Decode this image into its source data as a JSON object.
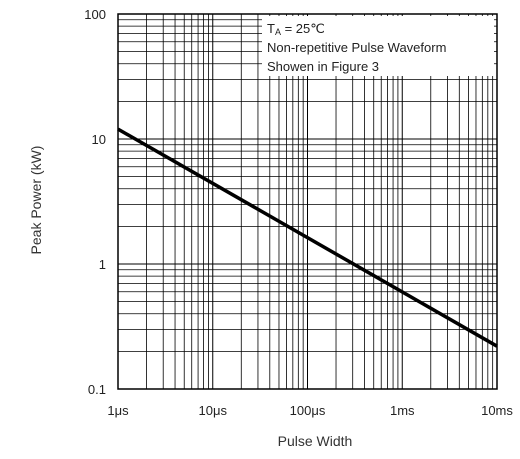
{
  "chart_data": {
    "type": "line",
    "x_scale": "log",
    "y_scale": "log",
    "xlim_seconds": [
      1e-06,
      0.01
    ],
    "ylim": [
      0.1,
      100
    ],
    "xlabel": "Pulse Width",
    "ylabel": "Peak Power (kW)",
    "x_tick_values": [
      1e-06,
      1e-05,
      0.0001,
      0.001,
      0.01
    ],
    "x_tick_labels": [
      "1μs",
      "10μs",
      "100μs",
      "1ms",
      "10ms"
    ],
    "y_tick_values": [
      0.1,
      1,
      10,
      100
    ],
    "y_tick_labels": [
      "0.1",
      "1",
      "10",
      "100"
    ],
    "grid": true,
    "annotation": {
      "line1_main": "T",
      "line1_sub": "A",
      "line1_rest": " = 25℃",
      "line2": "Non-repetitive Pulse Waveform",
      "line3": "Showen in Figure 3"
    },
    "series": [
      {
        "color": "#000000",
        "x": [
          1e-06,
          0.01
        ],
        "y": [
          12,
          0.22
        ]
      }
    ]
  }
}
